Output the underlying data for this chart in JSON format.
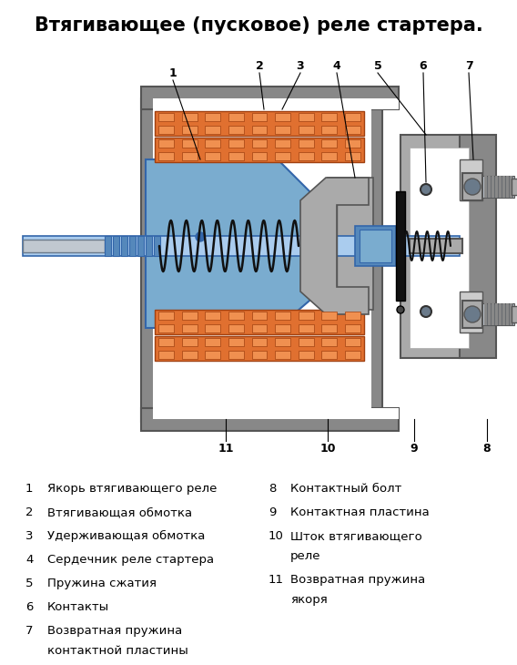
{
  "title": "Втягивающее (пусковое) реле стартера.",
  "title_fontsize": 15,
  "title_fontweight": "bold",
  "background_color": "#ffffff",
  "legend_items_left": [
    {
      "num": "1",
      "text": "Якорь втягивающего реле"
    },
    {
      "num": "2",
      "text": "Втягивающая обмотка"
    },
    {
      "num": "3",
      "text": "Удерживающая обмотка"
    },
    {
      "num": "4",
      "text": "Сердечник реле стартера"
    },
    {
      "num": "5",
      "text": "Пружина сжатия"
    },
    {
      "num": "6",
      "text": "Контакты"
    },
    {
      "num": "7",
      "text": "Возвратная пружина\nконтактной пластины"
    }
  ],
  "legend_items_right": [
    {
      "num": "8",
      "text": "Контактный болт"
    },
    {
      "num": "9",
      "text": "Контактная пластина"
    },
    {
      "num": "10",
      "text": "Шток втягивающего\nреле"
    },
    {
      "num": "11",
      "text": "Возвратная пружина\nякоря"
    }
  ],
  "colors": {
    "gray_shell": "#888888",
    "gray_dark": "#555555",
    "gray_mid": "#aaaaaa",
    "gray_light": "#cccccc",
    "blue_anchor": "#7aaccf",
    "blue_mid": "#5588bb",
    "blue_light": "#aaccee",
    "blue_dark": "#3366aa",
    "orange_coil": "#e07030",
    "orange_light": "#f09050",
    "black": "#111111",
    "white": "#ffffff",
    "steel_dark": "#6a7a8a",
    "steel_light": "#c0c8d0"
  }
}
